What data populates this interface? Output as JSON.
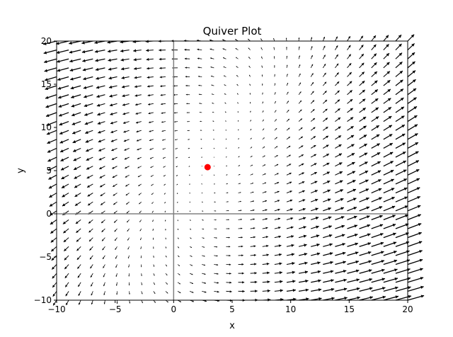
{
  "chart_data": {
    "type": "quiver",
    "title": "Quiver Plot",
    "xlabel": "x",
    "ylabel": "y",
    "xlim": [
      -10,
      20
    ],
    "ylim": [
      -10,
      20
    ],
    "xticks": [
      -10,
      -5,
      0,
      5,
      10,
      15,
      20
    ],
    "yticks": [
      -10,
      -5,
      0,
      5,
      10,
      15,
      20
    ],
    "xtick_labels": [
      "−10",
      "−5",
      "0",
      "5",
      "10",
      "15",
      "20"
    ],
    "ytick_labels": [
      "−10",
      "−5",
      "0",
      "5",
      "10",
      "15",
      "20"
    ],
    "grid": false,
    "axis_lines": {
      "x": 0,
      "y": 0,
      "color": "#808080"
    },
    "field": {
      "x_start": -10,
      "x_end": 20,
      "y_start": -10,
      "y_end": 20,
      "grid_points": 30,
      "equilibrium": [
        2.9,
        5.4
      ],
      "vx": "(x - 2.9) - 0.5 * (y - 5.4)",
      "vy": "0.5 * (x - 2.9) + 0.1 * (y - 5.4)",
      "arrow_color": "#000000"
    },
    "points": [
      {
        "x": 2.9,
        "y": 5.4,
        "color": "#ff0000"
      }
    ]
  }
}
